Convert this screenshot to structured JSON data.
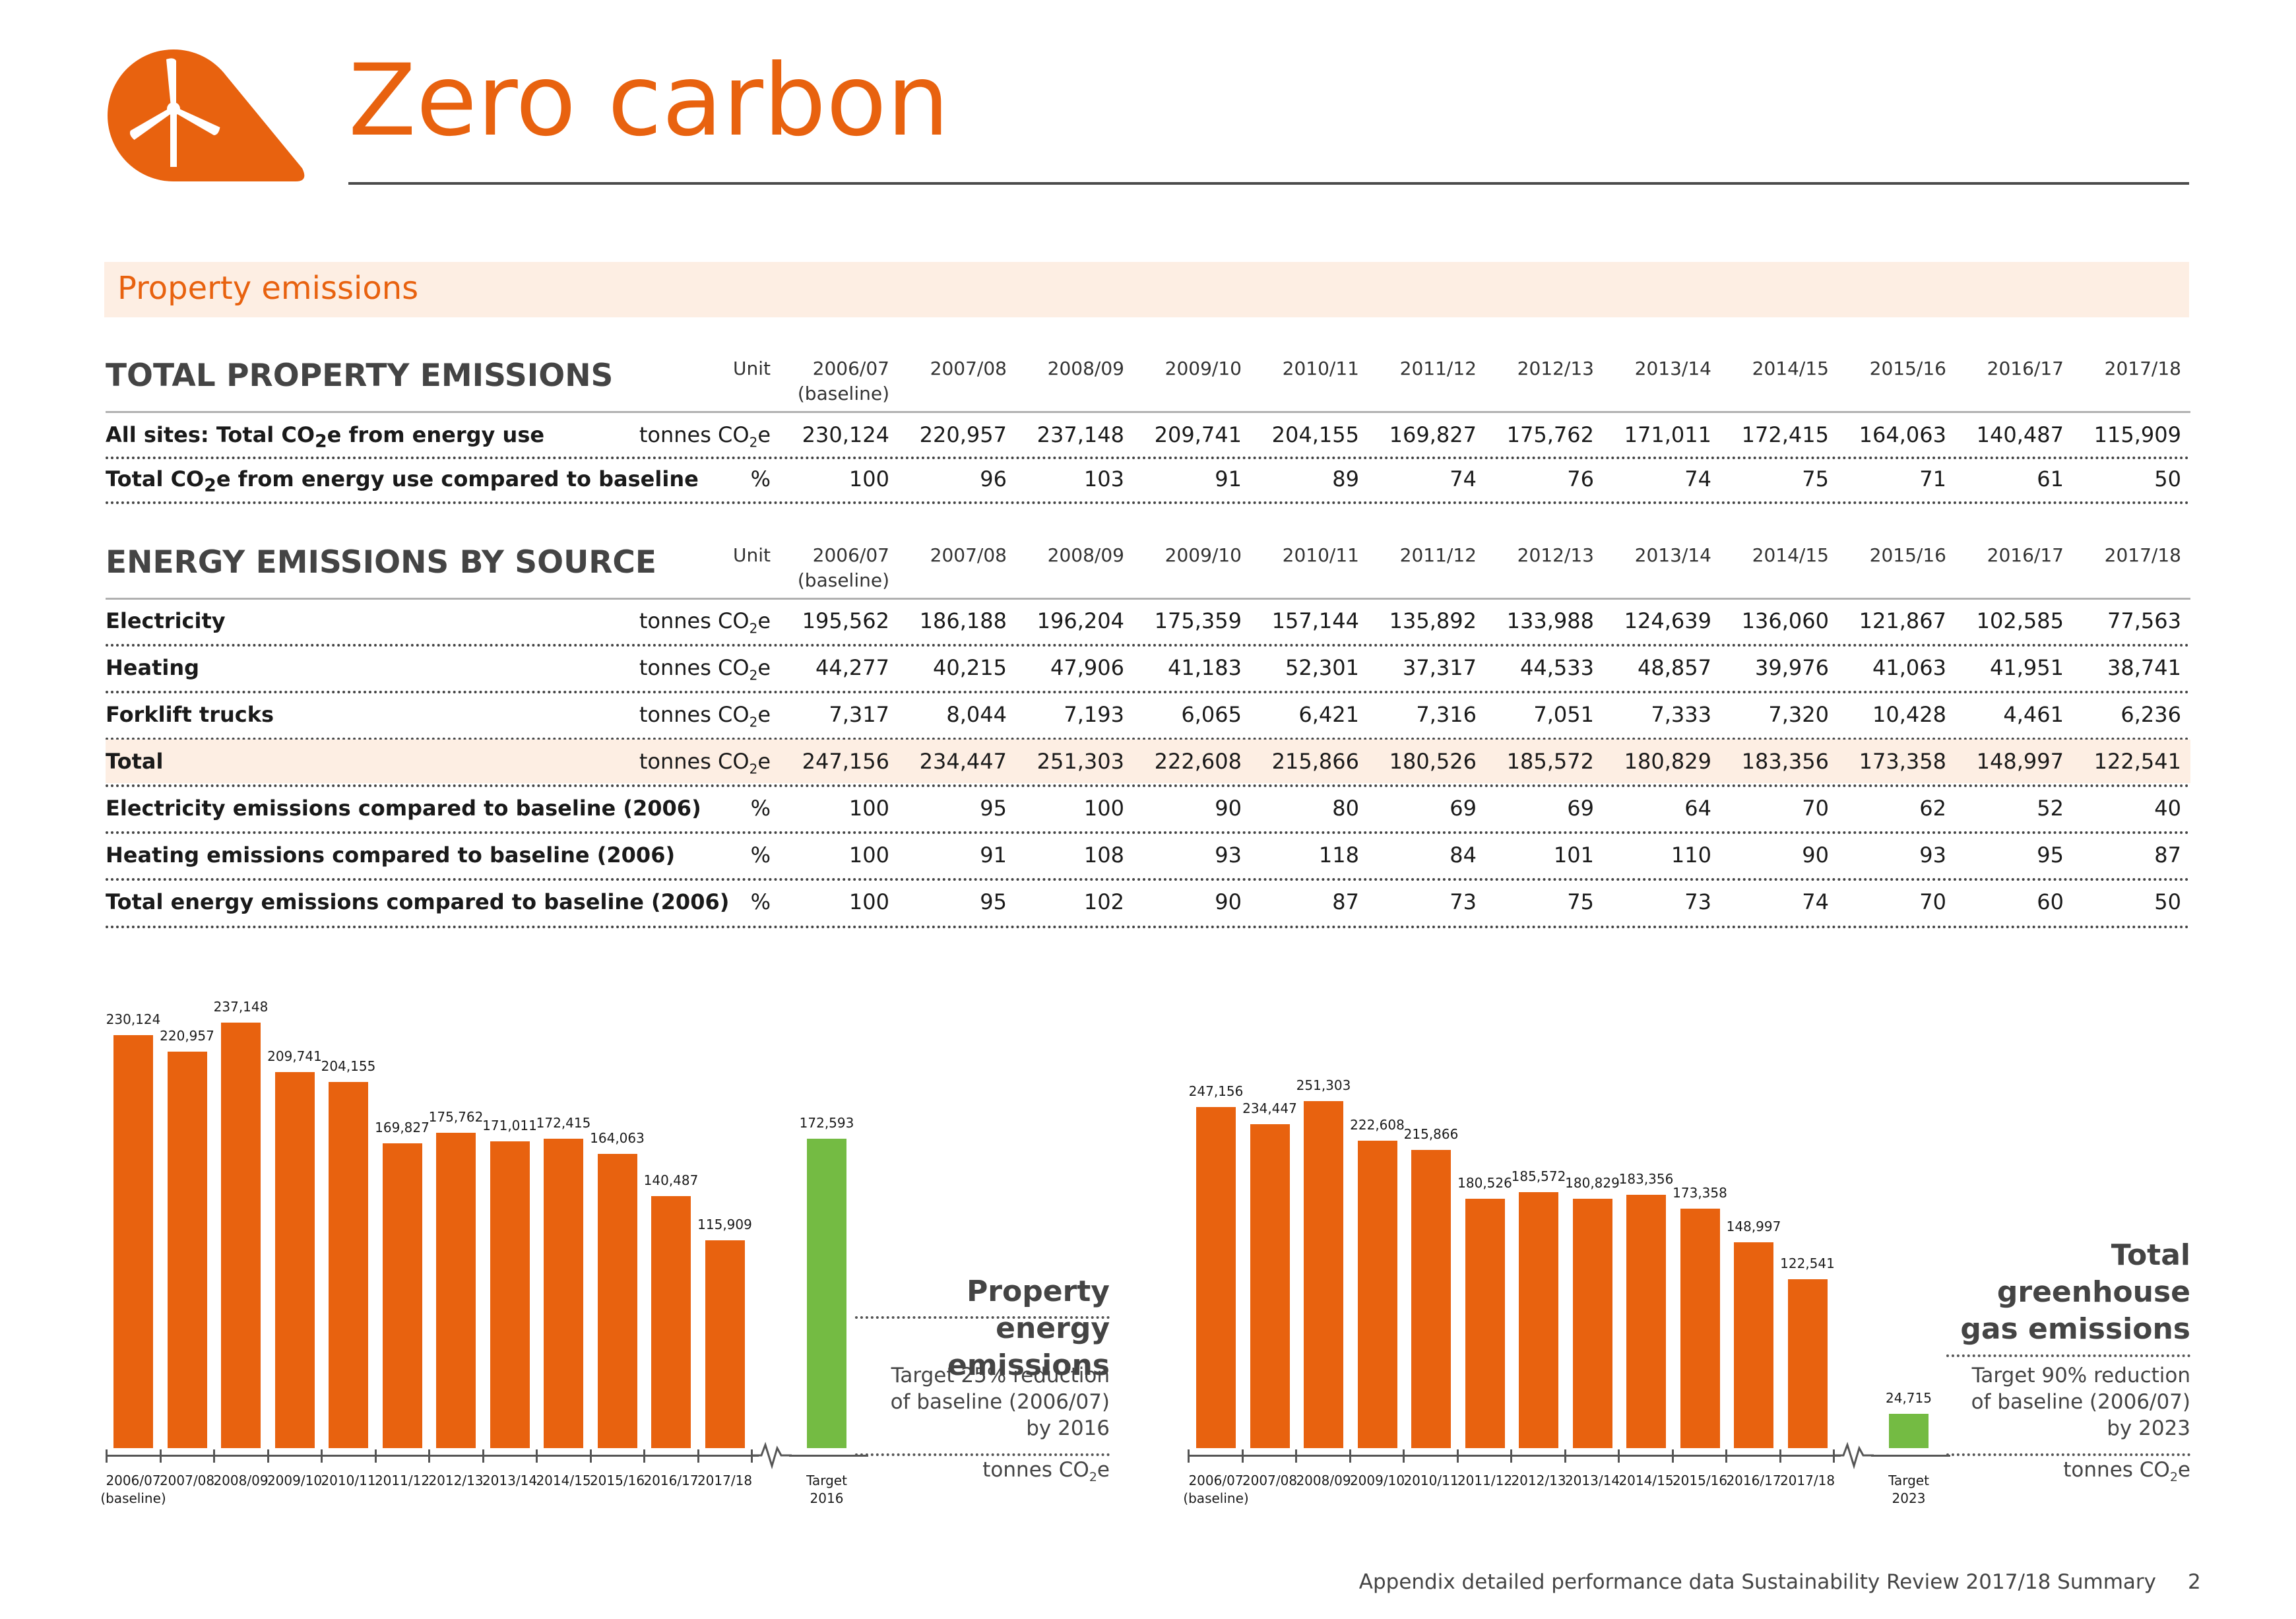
{
  "header": {
    "title": "Zero carbon",
    "icon": "wind-turbine-icon",
    "accent": "#e8620f"
  },
  "band": {
    "title": "Property emissions"
  },
  "table1": {
    "title": "TOTAL PROPERTY EMISSIONS",
    "unit_header": "Unit",
    "years": [
      "2006/07",
      "2007/08",
      "2008/09",
      "2009/10",
      "2010/11",
      "2011/12",
      "2012/13",
      "2013/14",
      "2014/15",
      "2015/16",
      "2016/17",
      "2017/18"
    ],
    "baseline_note": "(baseline)",
    "rows": [
      {
        "label": "All sites: Total CO2e from energy use",
        "unit": "tonnes CO2e",
        "values": [
          "230,124",
          "220,957",
          "237,148",
          "209,741",
          "204,155",
          "169,827",
          "175,762",
          "171,011",
          "172,415",
          "164,063",
          "140,487",
          "115,909"
        ]
      },
      {
        "label": "Total CO2e from energy use compared to baseline",
        "unit": "%",
        "values": [
          "100",
          "96",
          "103",
          "91",
          "89",
          "74",
          "76",
          "74",
          "75",
          "71",
          "61",
          "50"
        ]
      }
    ]
  },
  "table2": {
    "title": "ENERGY EMISSIONS BY SOURCE",
    "unit_header": "Unit",
    "rows": [
      {
        "label": "Electricity",
        "unit": "tonnes CO2e",
        "values": [
          "195,562",
          "186,188",
          "196,204",
          "175,359",
          "157,144",
          "135,892",
          "133,988",
          "124,639",
          "136,060",
          "121,867",
          "102,585",
          "77,563"
        ]
      },
      {
        "label": "Heating",
        "unit": "tonnes CO2e",
        "values": [
          "44,277",
          "40,215",
          "47,906",
          "41,183",
          "52,301",
          "37,317",
          "44,533",
          "48,857",
          "39,976",
          "41,063",
          "41,951",
          "38,741"
        ]
      },
      {
        "label": "Forklift trucks",
        "unit": "tonnes CO2e",
        "values": [
          "7,317",
          "8,044",
          "7,193",
          "6,065",
          "6,421",
          "7,316",
          "7,051",
          "7,333",
          "7,320",
          "10,428",
          "4,461",
          "6,236"
        ]
      },
      {
        "label": "Total",
        "unit": "tonnes CO2e",
        "highlight": true,
        "values": [
          "247,156",
          "234,447",
          "251,303",
          "222,608",
          "215,866",
          "180,526",
          "185,572",
          "180,829",
          "183,356",
          "173,358",
          "148,997",
          "122,541"
        ]
      },
      {
        "label": "Electricity emissions compared to baseline (2006)",
        "unit": "%",
        "values": [
          "100",
          "95",
          "100",
          "90",
          "80",
          "69",
          "69",
          "64",
          "70",
          "62",
          "52",
          "40"
        ]
      },
      {
        "label": "Heating emissions compared to baseline (2006)",
        "unit": "%",
        "values": [
          "100",
          "91",
          "108",
          "93",
          "118",
          "84",
          "101",
          "110",
          "90",
          "93",
          "95",
          "87"
        ]
      },
      {
        "label": "Total energy emissions compared to baseline (2006)",
        "unit": "%",
        "values": [
          "100",
          "95",
          "102",
          "90",
          "87",
          "73",
          "75",
          "73",
          "74",
          "70",
          "60",
          "50"
        ]
      }
    ]
  },
  "chart_data": [
    {
      "type": "bar",
      "title": "Property energy emissions",
      "description": "Target 25% reduction of baseline (2006/07) by 2016",
      "unit": "tonnes CO2e",
      "categories": [
        "2006/07",
        "2007/08",
        "2008/09",
        "2009/10",
        "2010/11",
        "2011/12",
        "2012/13",
        "2013/14",
        "2014/15",
        "2015/16",
        "2016/17",
        "2017/18"
      ],
      "values": [
        230124,
        220957,
        237148,
        209741,
        204155,
        169827,
        175762,
        171011,
        172415,
        164063,
        140487,
        115909
      ],
      "value_labels": [
        "230,124",
        "220,957",
        "237,148",
        "209,741",
        "204,155",
        "169,827",
        "175,762",
        "171,011",
        "172,415",
        "164,063",
        "140,487",
        "115,909"
      ],
      "first_sub": "(baseline)",
      "target": {
        "value": 172593,
        "label": "172,593",
        "cat1": "Target",
        "cat2": "2016"
      },
      "colors": {
        "bar": "#e8620f",
        "target": "#74bb43"
      }
    },
    {
      "type": "bar",
      "title": "Total greenhouse gas emissions",
      "description": "Target 90% reduction of baseline (2006/07) by 2023",
      "unit": "tonnes CO2e",
      "categories": [
        "2006/07",
        "2007/08",
        "2008/09",
        "2009/10",
        "2010/11",
        "2011/12",
        "2012/13",
        "2013/14",
        "2014/15",
        "2015/16",
        "2016/17",
        "2017/18"
      ],
      "values": [
        247156,
        234447,
        251303,
        222608,
        215866,
        180526,
        185572,
        180829,
        183356,
        173358,
        148997,
        122541
      ],
      "value_labels": [
        "247,156",
        "234,447",
        "251,303",
        "222,608",
        "215,866",
        "180,526",
        "185,572",
        "180,829",
        "183,356",
        "173,358",
        "148,997",
        "122,541"
      ],
      "first_sub": "(baseline)",
      "target": {
        "value": 24715,
        "label": "24,715",
        "cat1": "Target",
        "cat2": "2023"
      },
      "colors": {
        "bar": "#e8620f",
        "target": "#74bb43"
      }
    }
  ],
  "footer": {
    "text": "Appendix detailed performance data Sustainability Review 2017/18 Summary",
    "page": "2"
  }
}
